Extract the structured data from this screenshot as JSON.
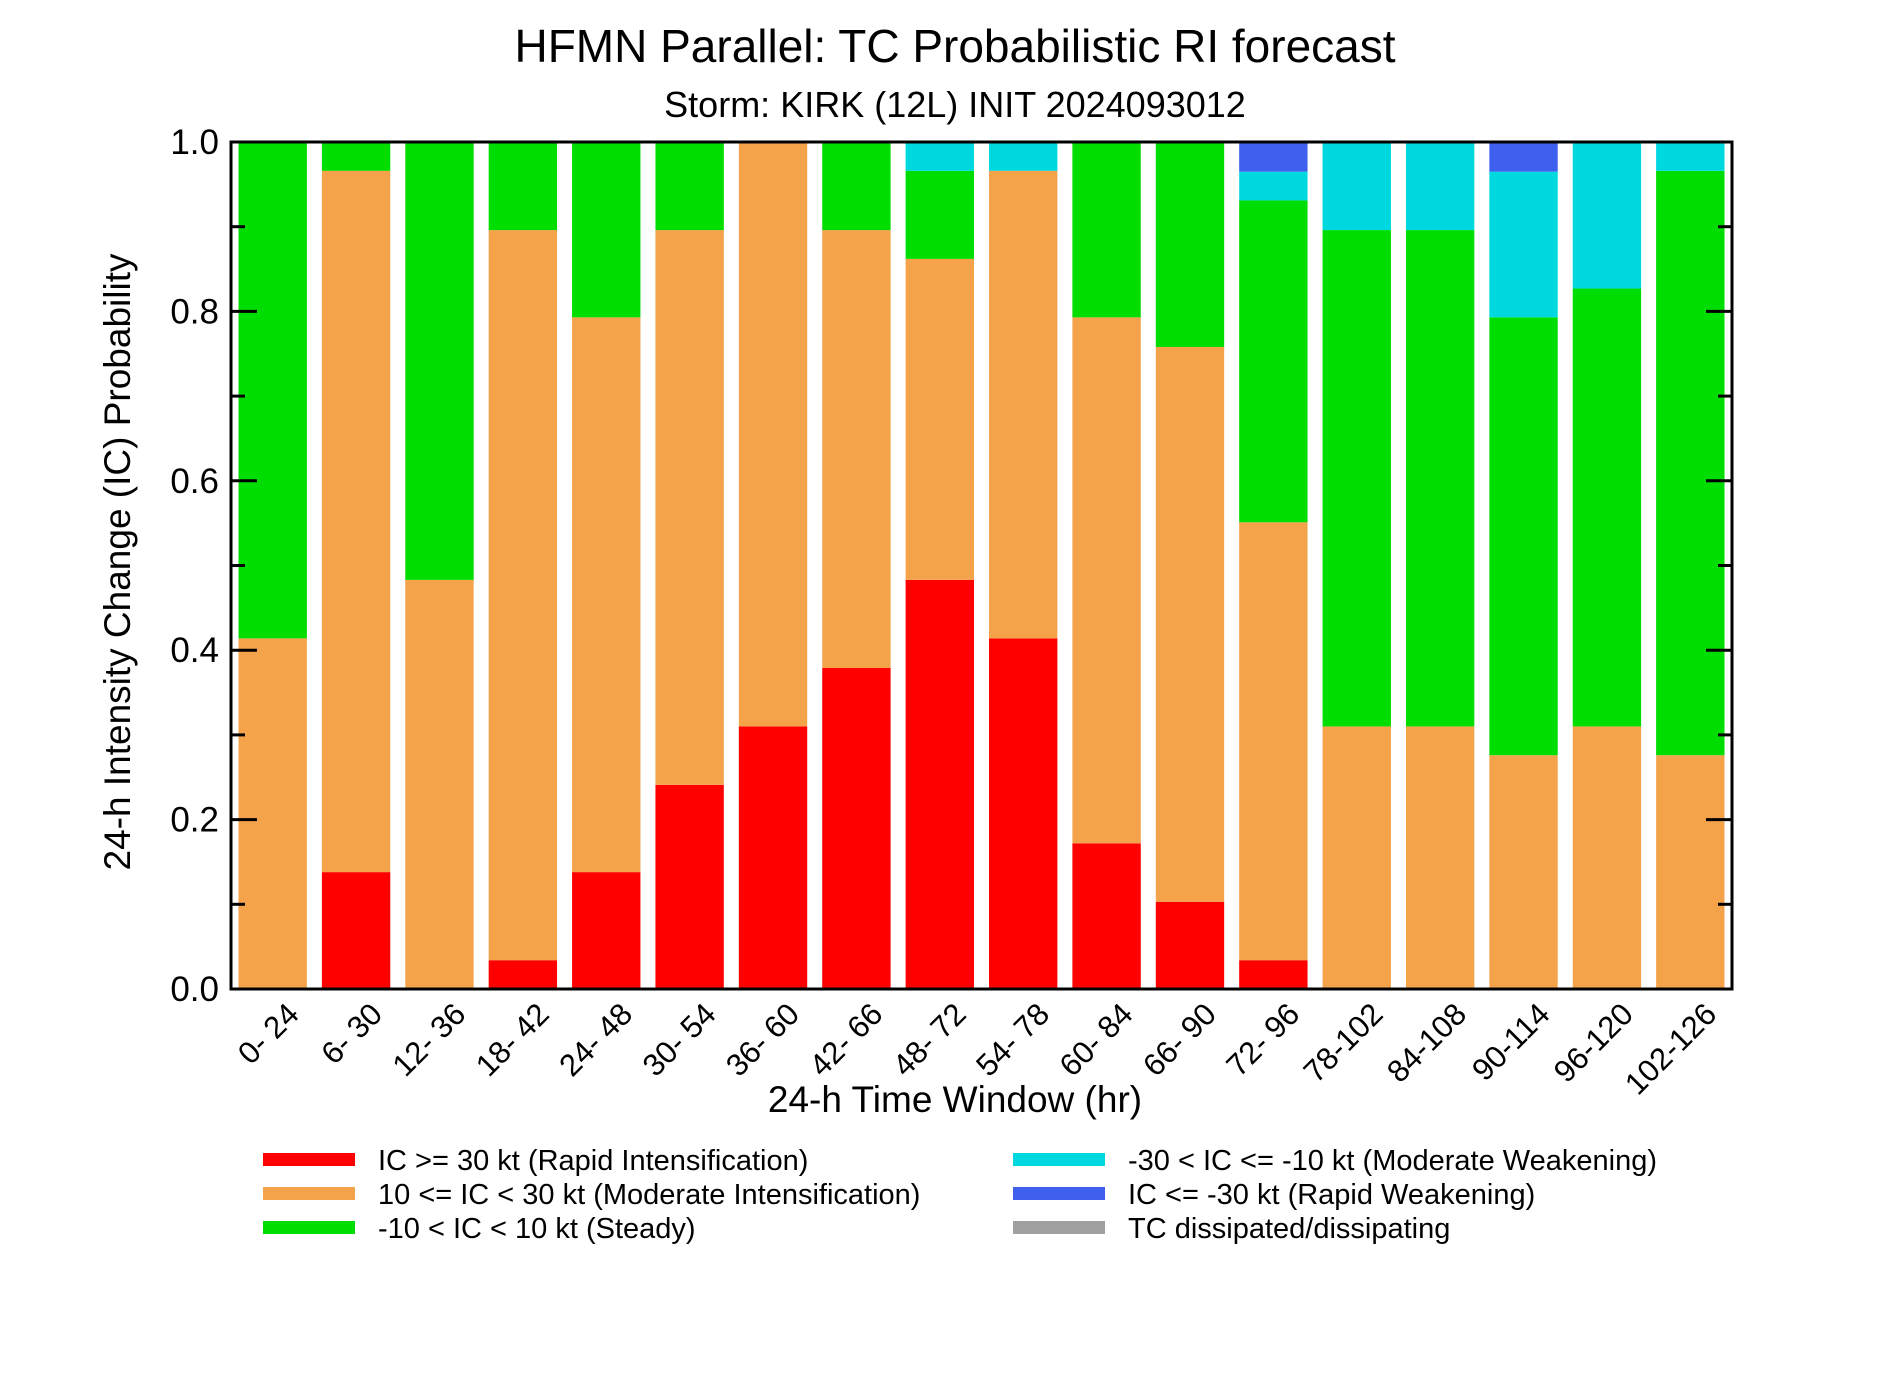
{
  "chart_data": {
    "type": "bar",
    "stacked": true,
    "title": "HFMN Parallel: TC Probabilistic RI forecast",
    "subtitle": "Storm: KIRK (12L) INIT 2024093012",
    "xlabel": "24-h Time Window (hr)",
    "ylabel": "24-h Intensity Change (IC) Probability",
    "ylim": [
      0,
      1
    ],
    "yticks": [
      "0.0",
      "0.2",
      "0.4",
      "0.6",
      "0.8",
      "1.0"
    ],
    "categories": [
      "0- 24",
      "6- 30",
      "12- 36",
      "18- 42",
      "24- 48",
      "30- 54",
      "36- 60",
      "42- 66",
      "48- 72",
      "54- 78",
      "60- 84",
      "66- 90",
      "72- 96",
      "78-102",
      "84-108",
      "90-114",
      "96-120",
      "102-126"
    ],
    "series": [
      {
        "name": "IC >= 30 kt (Rapid Intensification)",
        "color": "#ff0000",
        "values": [
          0,
          0.138,
          0,
          0.034,
          0.138,
          0.241,
          0.31,
          0.379,
          0.483,
          0.414,
          0.172,
          0.103,
          0.034,
          0,
          0,
          0,
          0,
          0
        ]
      },
      {
        "name": "10 <= IC < 30 kt (Moderate Intensification)",
        "color": "#f4a34b",
        "values": [
          0.414,
          0.828,
          0.483,
          0.862,
          0.655,
          0.655,
          0.69,
          0.517,
          0.379,
          0.552,
          0.621,
          0.655,
          0.517,
          0.31,
          0.31,
          0.276,
          0.31,
          0.276
        ]
      },
      {
        "name": "-10 < IC < 10 kt (Steady)",
        "color": "#00dd00",
        "values": [
          0.586,
          0.034,
          0.517,
          0.104,
          0.207,
          0.104,
          0,
          0.104,
          0.104,
          0,
          0.207,
          0.242,
          0.38,
          0.586,
          0.586,
          0.517,
          0.517,
          0.69
        ]
      },
      {
        "name": "-30 < IC <= -10 kt (Moderate Weakening)",
        "color": "#00d8e0",
        "values": [
          0,
          0,
          0,
          0,
          0,
          0,
          0,
          0,
          0.034,
          0.034,
          0,
          0,
          0.034,
          0.104,
          0.104,
          0.172,
          0.173,
          0.034
        ]
      },
      {
        "name": "IC <= -30 kt (Rapid Weakening)",
        "color": "#3f5fee",
        "values": [
          0,
          0,
          0,
          0,
          0,
          0,
          0,
          0,
          0,
          0,
          0,
          0,
          0.035,
          0,
          0,
          0.035,
          0,
          0
        ]
      },
      {
        "name": "TC dissipated/dissipating",
        "color": "#a0a0a0",
        "values": [
          0,
          0,
          0,
          0,
          0,
          0,
          0,
          0,
          0,
          0,
          0,
          0,
          0,
          0,
          0,
          0,
          0,
          0
        ]
      }
    ],
    "legend_placement": "bottom"
  }
}
